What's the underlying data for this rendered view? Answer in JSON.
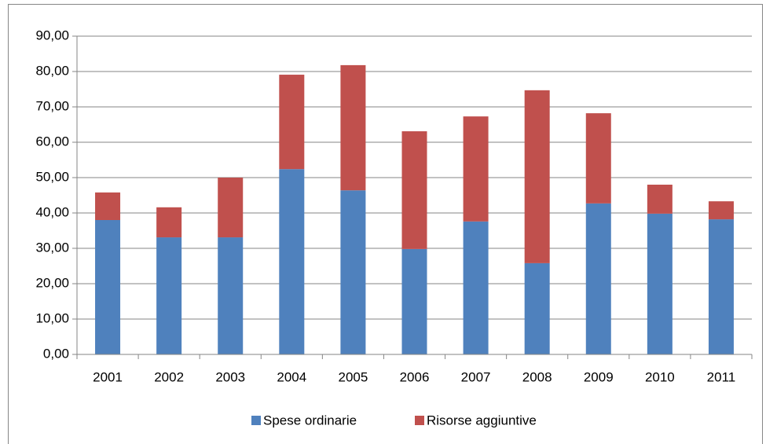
{
  "chart_data": {
    "type": "stacked-bar",
    "categories": [
      "2001",
      "2002",
      "2003",
      "2004",
      "2005",
      "2006",
      "2007",
      "2008",
      "2009",
      "2010",
      "2011"
    ],
    "series": [
      {
        "name": "Spese ordinarie",
        "color": "#4f81bd",
        "values": [
          38.0,
          33.1,
          33.1,
          52.4,
          46.4,
          29.8,
          37.6,
          25.8,
          42.7,
          39.8,
          38.2
        ]
      },
      {
        "name": "Risorse aggiuntive",
        "color": "#c0504d",
        "values": [
          7.8,
          8.5,
          16.9,
          26.7,
          35.4,
          33.3,
          29.7,
          48.9,
          25.5,
          8.2,
          5.1
        ]
      }
    ],
    "ylim": [
      0,
      90
    ],
    "yticks": [
      {
        "value": 0,
        "label": "0,00"
      },
      {
        "value": 10,
        "label": "10,00"
      },
      {
        "value": 20,
        "label": "20,00"
      },
      {
        "value": 30,
        "label": "30,00"
      },
      {
        "value": 40,
        "label": "40,00"
      },
      {
        "value": 50,
        "label": "50,00"
      },
      {
        "value": 60,
        "label": "60,00"
      },
      {
        "value": 70,
        "label": "70,00"
      },
      {
        "value": 80,
        "label": "80,00"
      },
      {
        "value": 90,
        "label": "90,00"
      }
    ],
    "grid": true,
    "legend": "bottom"
  }
}
